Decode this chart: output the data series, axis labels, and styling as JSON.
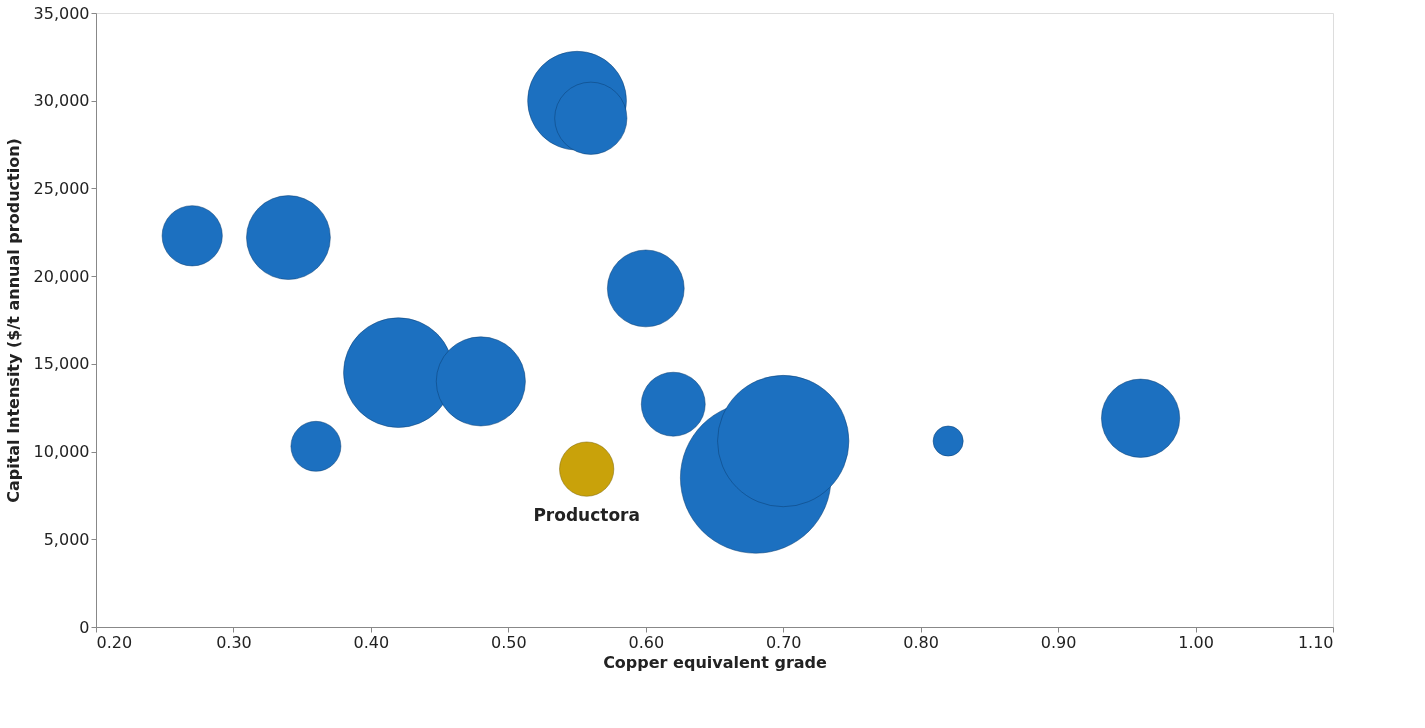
{
  "chart_data": {
    "type": "bubble",
    "xlabel": "Copper equivalent grade",
    "ylabel": "Capital Intensity ($/t annual production)",
    "xlim": [
      0.2,
      1.1
    ],
    "xticks": [
      {
        "value": 0.2,
        "label": "0.20"
      },
      {
        "value": 0.3,
        "label": "0.30"
      },
      {
        "value": 0.4,
        "label": "0.40"
      },
      {
        "value": 0.5,
        "label": "0.50"
      },
      {
        "value": 0.6,
        "label": "0.60"
      },
      {
        "value": 0.7,
        "label": "0.70"
      },
      {
        "value": 0.8,
        "label": "0.80"
      },
      {
        "value": 0.9,
        "label": "0.90"
      },
      {
        "value": 1.0,
        "label": "1.00"
      },
      {
        "value": 1.1,
        "label": "1.10"
      }
    ],
    "ylim": [
      0,
      35000
    ],
    "yticks": [
      0,
      {
        "value": 5000,
        "label": "5,000"
      },
      {
        "value": 10000,
        "label": "10,000"
      },
      {
        "value": 15000,
        "label": "15,000"
      },
      {
        "value": 20000,
        "label": "20,000"
      },
      {
        "value": 25000,
        "label": "25,000"
      },
      {
        "value": 30000,
        "label": "30,000"
      },
      {
        "value": 35000,
        "label": "35,000"
      }
    ],
    "series": [
      {
        "color": "#1c70c0",
        "x": [
          0.27,
          0.34,
          0.36,
          0.42,
          0.48,
          0.55,
          0.56,
          0.6,
          0.62,
          0.68,
          0.7,
          0.82,
          0.96
        ],
        "values": [
          22300,
          22200,
          10300,
          14500,
          14000,
          30000,
          29000,
          19300,
          12700,
          8500,
          10600,
          10600,
          11900
        ],
        "sizes": [
          0.16,
          0.31,
          0.11,
          0.53,
          0.35,
          0.43,
          0.23,
          0.26,
          0.18,
          1.0,
          0.76,
          0.04,
          0.27
        ]
      },
      {
        "name": "Productora",
        "color": "#c9a20a",
        "x": [
          0.557
        ],
        "values": [
          9000
        ],
        "sizes": [
          0.13
        ]
      }
    ]
  }
}
